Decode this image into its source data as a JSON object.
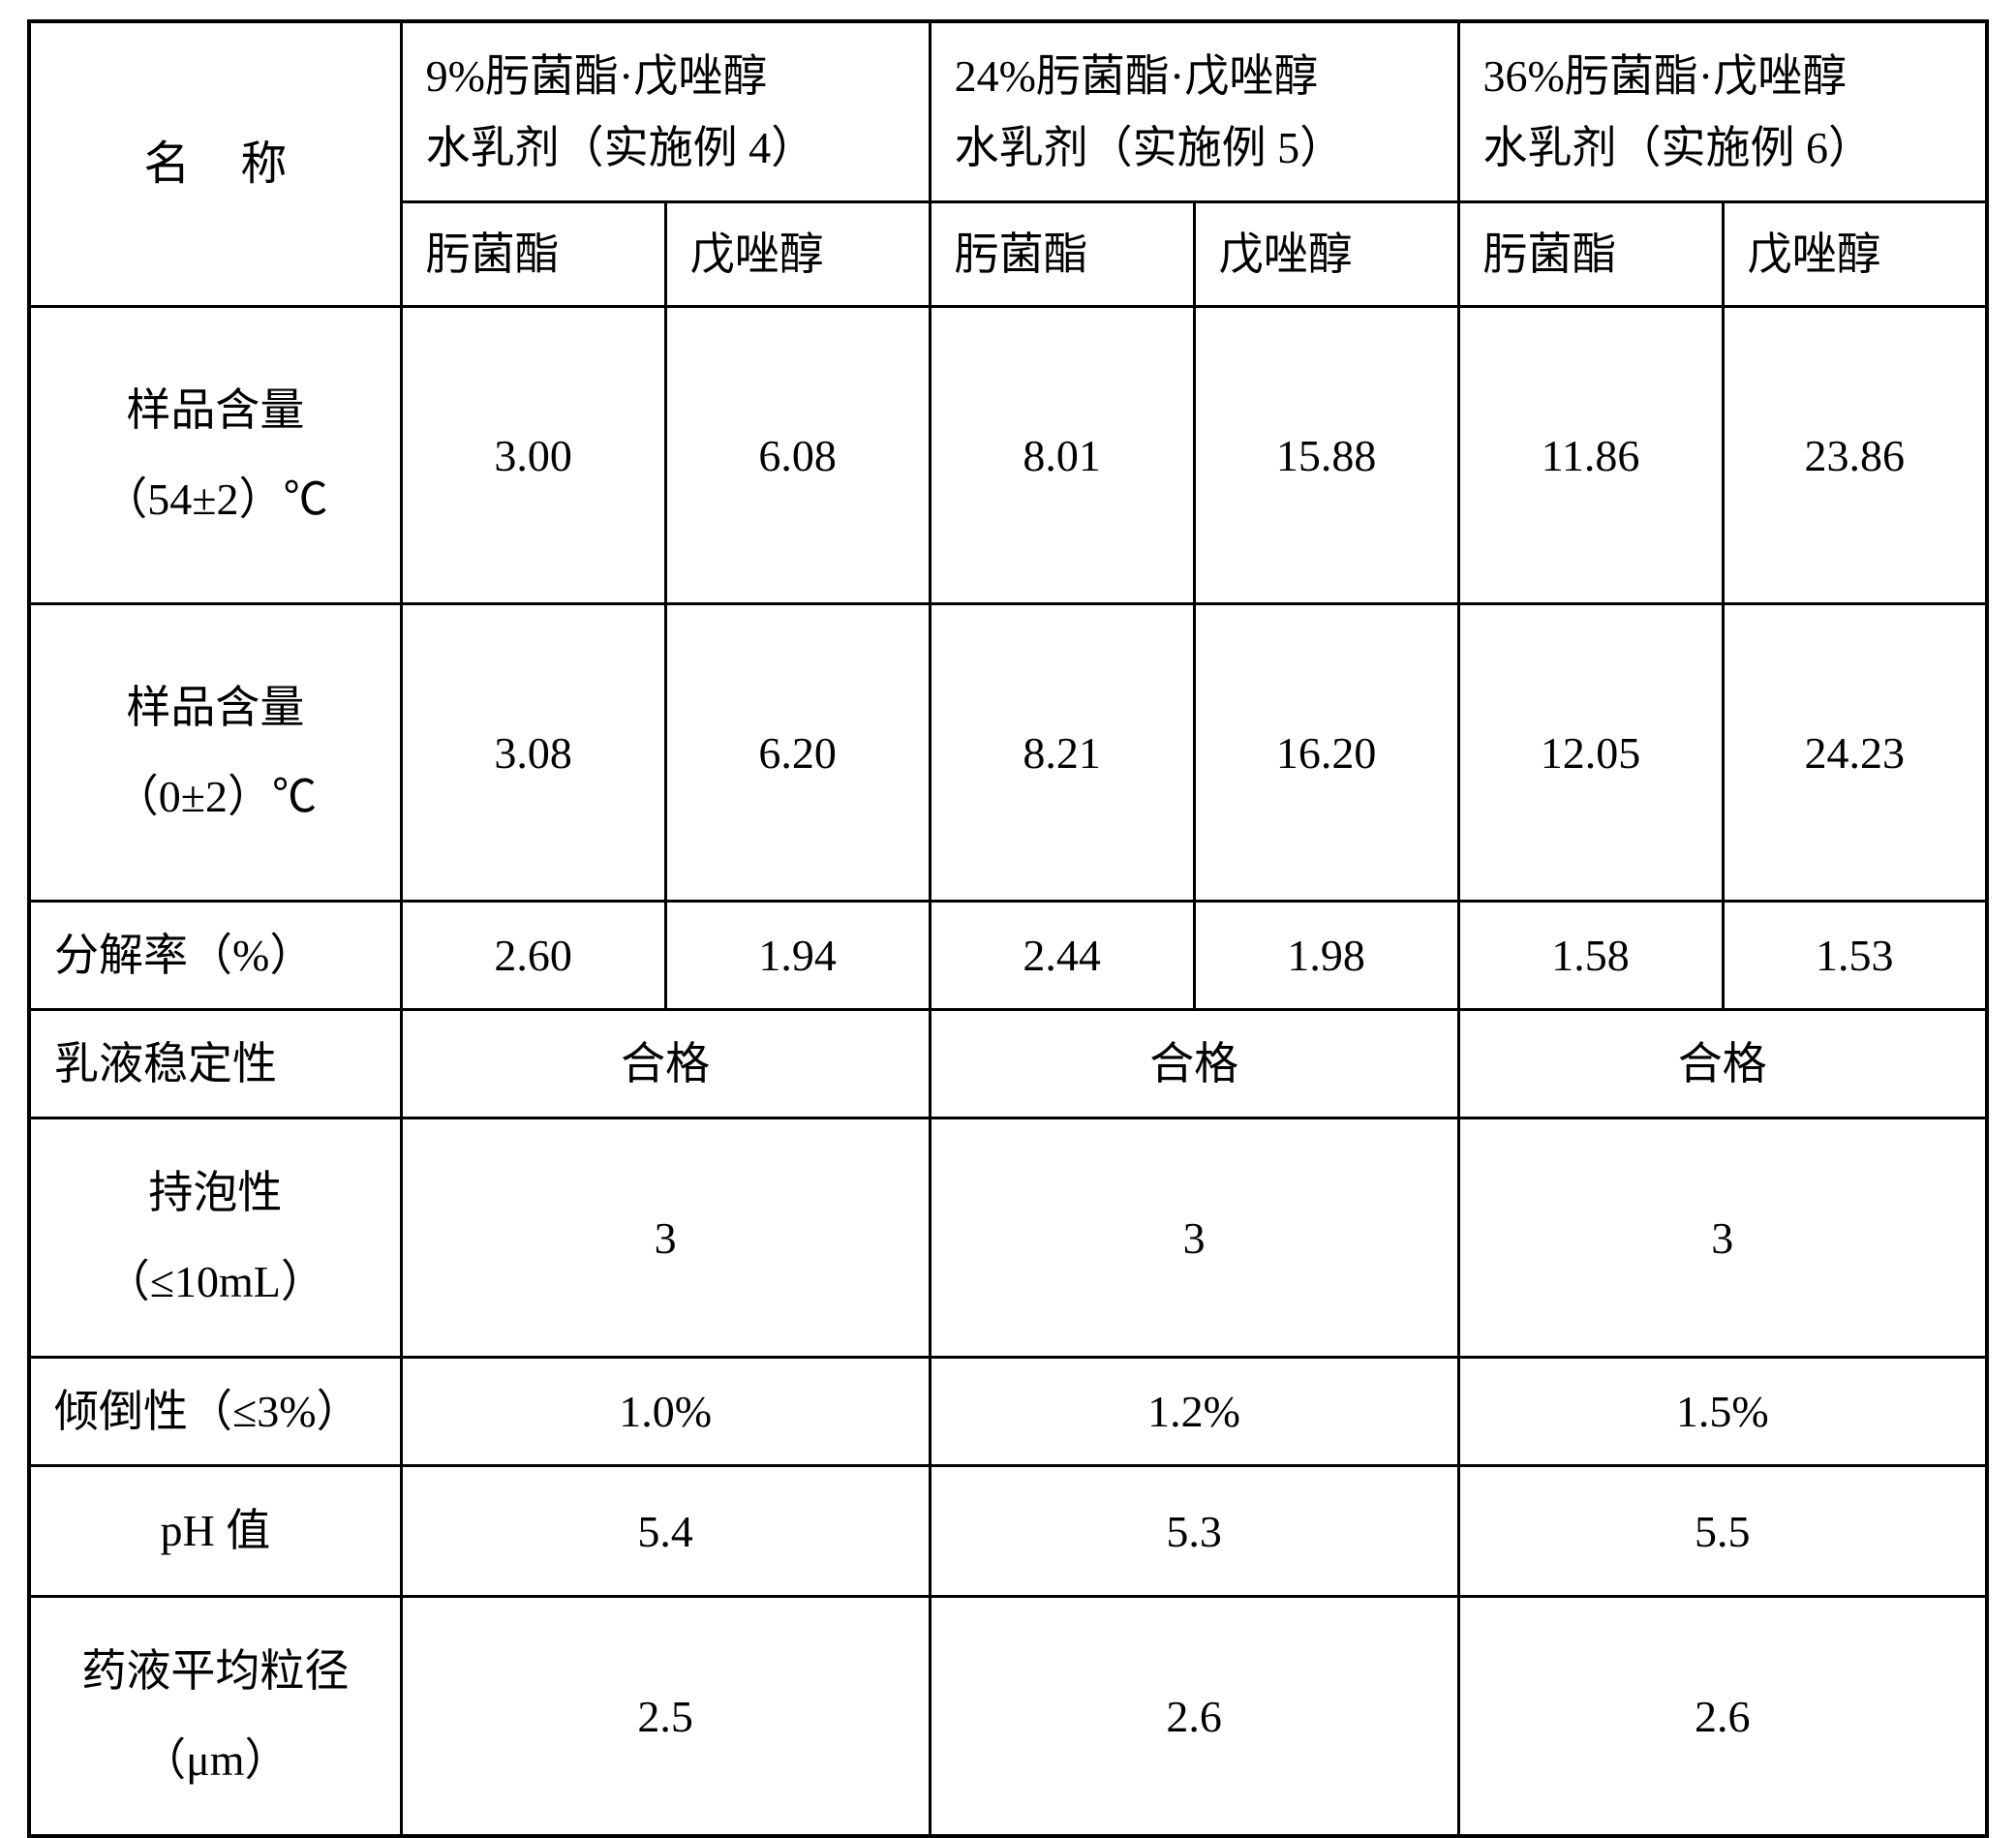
{
  "table": {
    "type": "table",
    "border_color": "#000000",
    "background_color": "#ffffff",
    "text_color": "#000000",
    "font_family": "SimSun / Songti serif",
    "base_fontsize_pt": 34,
    "header": {
      "name_label": "名 称",
      "groups": [
        {
          "title_line1": "9%肟菌酯·戊唑醇",
          "title_line2": "水乳剂（实施例 4）",
          "sub_a": "肟菌酯",
          "sub_b": "戊唑醇"
        },
        {
          "title_line1": "24%肟菌酯·戊唑醇",
          "title_line2": "水乳剂（实施例 5）",
          "sub_a": "肟菌酯",
          "sub_b": "戊唑醇"
        },
        {
          "title_line1": "36%肟菌酯·戊唑醇",
          "title_line2": "水乳剂（实施例 6）",
          "sub_a": "肟菌酯",
          "sub_b": "戊唑醇"
        }
      ]
    },
    "rows_split": [
      {
        "label_line1": "样品含量",
        "label_line2": "（54±2）℃",
        "cells": [
          "3.00",
          "6.08",
          "8.01",
          "15.88",
          "11.86",
          "23.86"
        ]
      },
      {
        "label_line1": "样品含量",
        "label_line2": "（0±2）℃",
        "cells": [
          "3.08",
          "6.20",
          "8.21",
          "16.20",
          "12.05",
          "24.23"
        ]
      },
      {
        "label": "分解率（%）",
        "cells": [
          "2.60",
          "1.94",
          "2.44",
          "1.98",
          "1.58",
          "1.53"
        ]
      }
    ],
    "rows_merged": [
      {
        "label": "乳液稳定性",
        "cells": [
          "合格",
          "合格",
          "合格"
        ]
      },
      {
        "label_line1": "持泡性",
        "label_line2": "（≤10mL）",
        "cells": [
          "3",
          "3",
          "3"
        ]
      },
      {
        "label": "倾倒性（≤3%）",
        "cells": [
          "1.0%",
          "1.2%",
          "1.5%"
        ]
      },
      {
        "label": "pH 值",
        "cells": [
          "5.4",
          "5.3",
          "5.5"
        ]
      },
      {
        "label_line1": "药液平均粒径",
        "label_line2": "（μm）",
        "cells": [
          "2.5",
          "2.6",
          "2.6"
        ]
      }
    ],
    "column_widths_pct": [
      19,
      13.5,
      13.5,
      13.5,
      13.5,
      13.5,
      13.5
    ]
  }
}
